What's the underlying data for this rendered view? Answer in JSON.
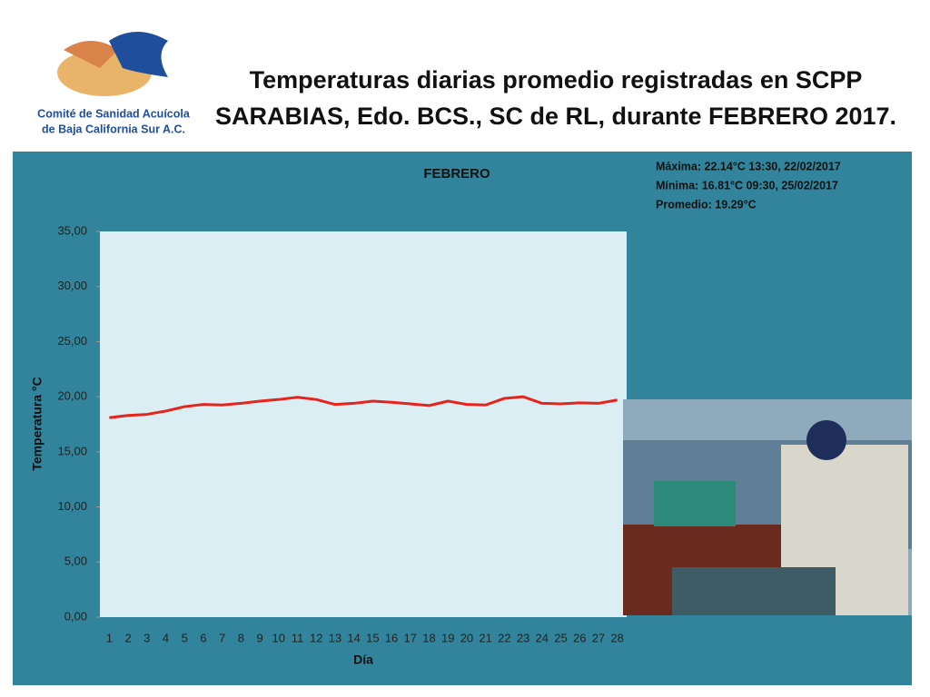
{
  "slide": {
    "title": [
      "Temperaturas diarias promedio registradas en SCPP",
      "SARABIAS, Edo. BCS., SC de RL, durante FEBRERO 2017."
    ],
    "logo_text": [
      "Comité de Sanidad Acuícola",
      "de Baja California Sur A.C."
    ]
  },
  "chart_data": {
    "type": "line",
    "title": "FEBRERO",
    "annotations": [
      "Máxima: 22.14°C  13:30, 22/02/2017",
      "Mínima:  16.81°C 09:30, 25/02/2017",
      "Promedio: 19.29°C"
    ],
    "x_label": "Día",
    "y_label": "Temperatura °C",
    "categories": [
      "1",
      "2",
      "3",
      "4",
      "5",
      "6",
      "7",
      "8",
      "9",
      "10",
      "11",
      "12",
      "13",
      "14",
      "15",
      "16",
      "17",
      "18",
      "19",
      "20",
      "21",
      "22",
      "23",
      "24",
      "25",
      "26",
      "27",
      "28"
    ],
    "series": [
      {
        "name": "Temperatura",
        "color": "#e8231c",
        "values": [
          18.1,
          18.3,
          18.4,
          18.7,
          19.1,
          19.3,
          19.25,
          19.4,
          19.6,
          19.75,
          19.95,
          19.75,
          19.3,
          19.4,
          19.6,
          19.5,
          19.35,
          19.2,
          19.6,
          19.3,
          19.25,
          19.85,
          20.0,
          19.4,
          19.35,
          19.45,
          19.4,
          19.7
        ]
      }
    ],
    "ylim": [
      0,
      35
    ],
    "yticks": [
      {
        "value": 0,
        "label": "0,00"
      },
      {
        "value": 5,
        "label": "5,00"
      },
      {
        "value": 10,
        "label": "10,00"
      },
      {
        "value": 15,
        "label": "15,00"
      },
      {
        "value": 20,
        "label": "20,00"
      },
      {
        "value": 25,
        "label": "25,00"
      },
      {
        "value": 30,
        "label": "30,00"
      },
      {
        "value": 35,
        "label": "35,00"
      }
    ],
    "grid": false
  }
}
